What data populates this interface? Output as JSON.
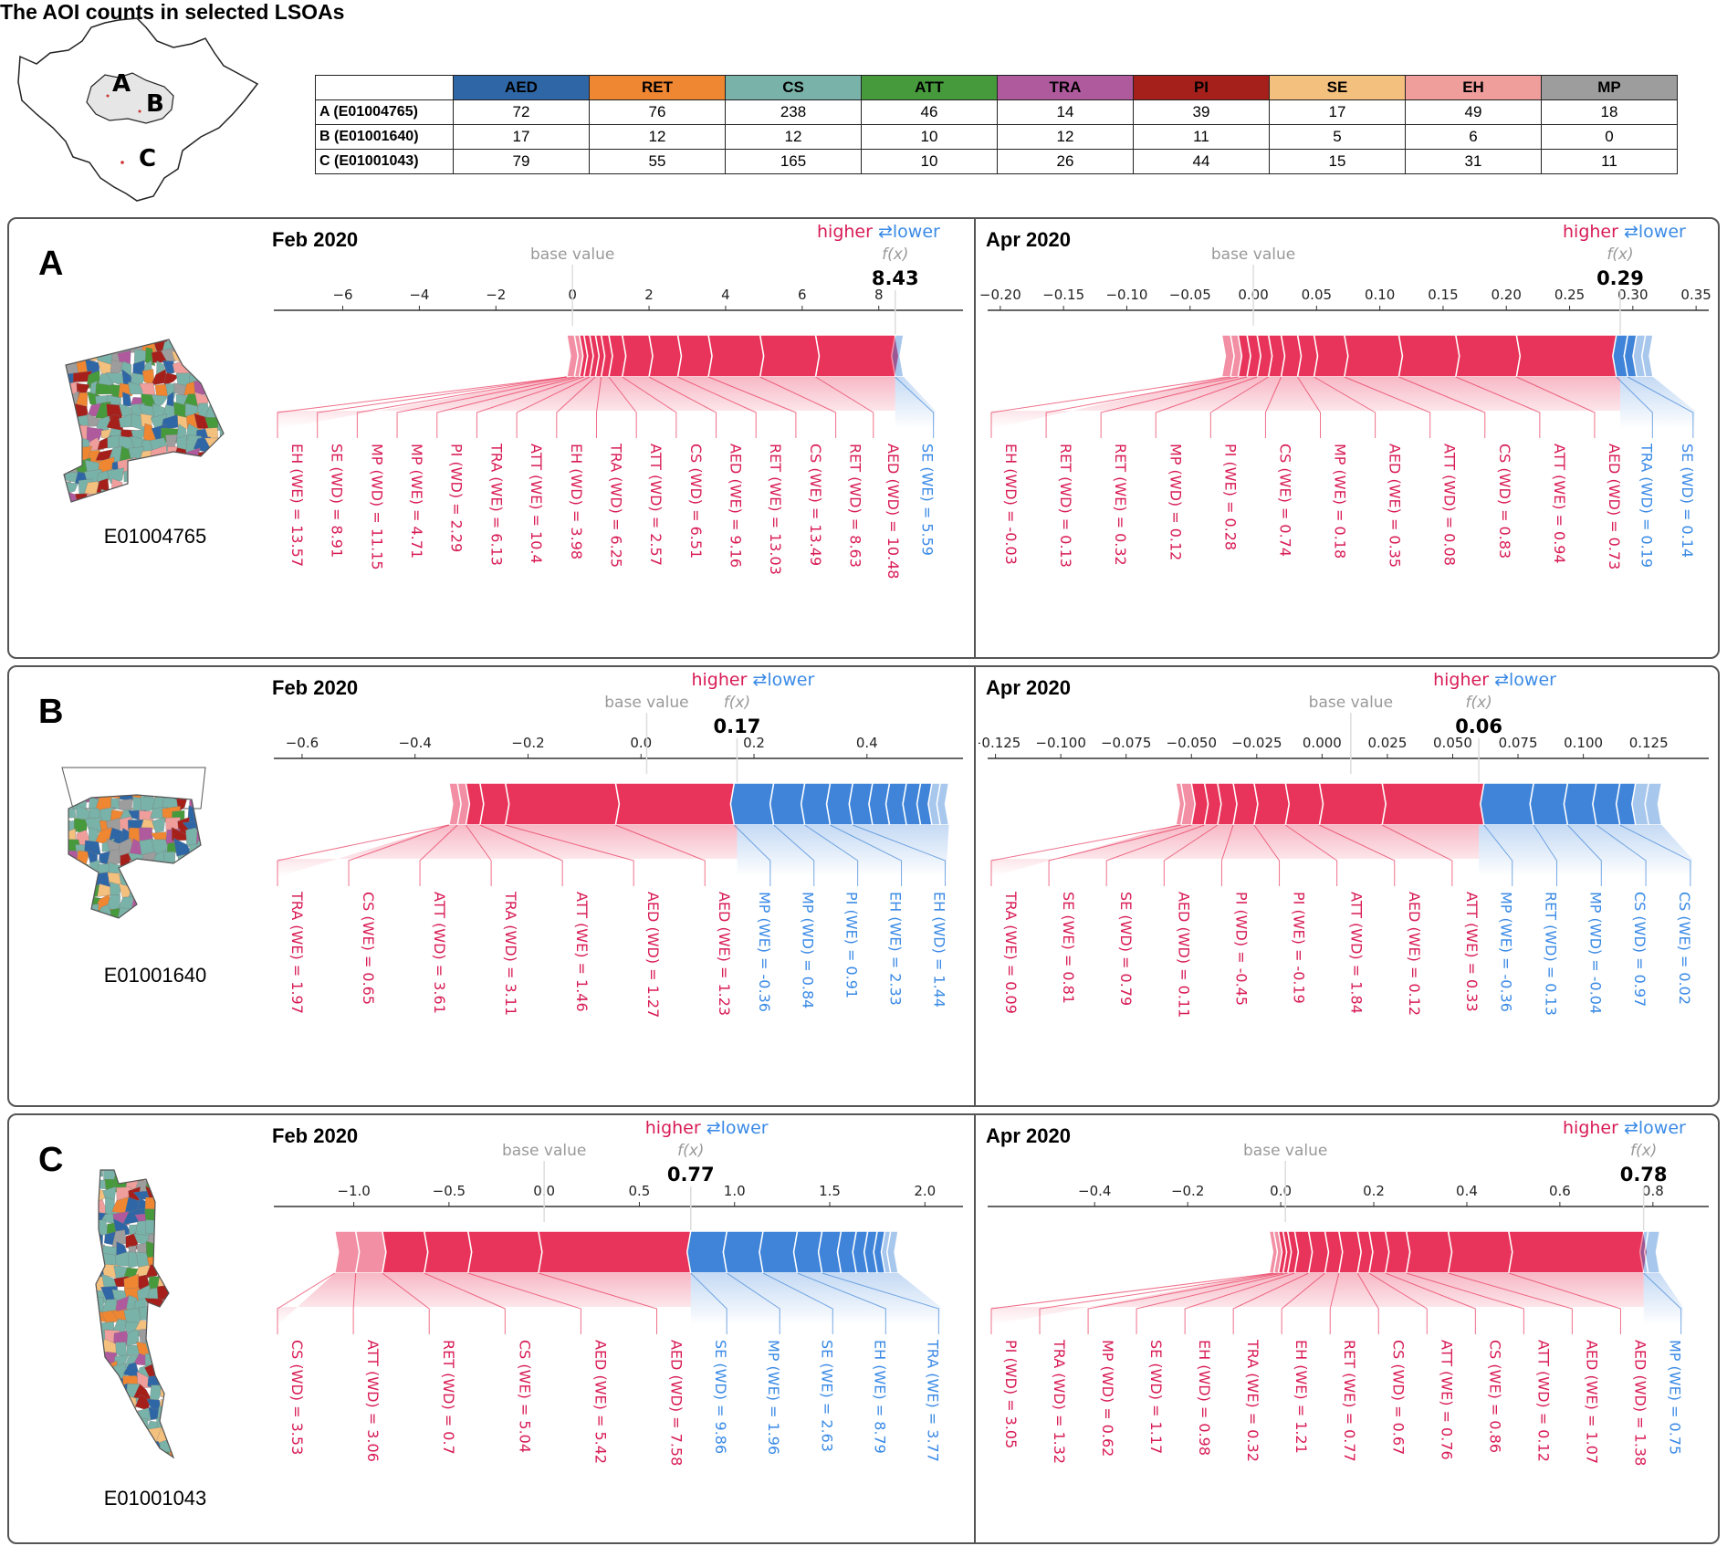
{
  "overview_map": {
    "markers": [
      "A",
      "B",
      "C"
    ]
  },
  "table": {
    "title": "The AOI counts in selected LSOAs",
    "columns": [
      {
        "label": "AED",
        "color": "#2f67a6"
      },
      {
        "label": "RET",
        "color": "#ef8632"
      },
      {
        "label": "CS",
        "color": "#79b2a8"
      },
      {
        "label": "ATT",
        "color": "#479a3c"
      },
      {
        "label": "TRA",
        "color": "#b05a9e"
      },
      {
        "label": "PI",
        "color": "#a5201b"
      },
      {
        "label": "SE",
        "color": "#f4c07e"
      },
      {
        "label": "EH",
        "color": "#ef9e9c"
      },
      {
        "label": "MP",
        "color": "#9d9d9d"
      }
    ],
    "rows": [
      {
        "label": "A (E01004765)",
        "values": [
          72,
          76,
          238,
          46,
          14,
          39,
          17,
          49,
          18
        ]
      },
      {
        "label": "B (E01001640)",
        "values": [
          17,
          12,
          12,
          10,
          12,
          11,
          5,
          6,
          0
        ]
      },
      {
        "label": "C (E01001043)",
        "values": [
          79,
          55,
          165,
          10,
          26,
          44,
          15,
          31,
          11
        ]
      }
    ]
  },
  "colors": {
    "positive": "#e8345a",
    "negative": "#3f84d9",
    "positive_text": "#d81b55",
    "negative_text": "#3a8ae6",
    "base_text": "#999999"
  },
  "legend": {
    "higher": "higher",
    "lower": "lower",
    "arrows": "⇄"
  },
  "common": {
    "base_value_label": "base value",
    "fx_label": "f(x)"
  },
  "panels": [
    {
      "id": "A",
      "lsoa": "E01004765"
    },
    {
      "id": "B",
      "lsoa": "E01001640"
    },
    {
      "id": "C",
      "lsoa": "E01001043"
    }
  ],
  "chart_data": [
    {
      "type": "force",
      "panel": "A",
      "title": "Feb 2020",
      "xlim": [
        -7.8,
        10.2
      ],
      "ticks": [
        -6,
        -4,
        -2,
        0,
        2,
        4,
        6,
        8
      ],
      "tick_labels": [
        "−6",
        "−4",
        "−2",
        "0",
        "2",
        "4",
        "6",
        "8"
      ],
      "base_value": 0.0,
      "fx": 8.43,
      "fx_label": "8.43",
      "positive": {
        "start": -0.15,
        "bounds": [
          -0.15,
          0.05,
          0.18,
          0.3,
          0.45,
          0.6,
          0.75,
          0.95,
          1.3,
          2.0,
          2.75,
          3.55,
          4.9,
          6.35,
          8.43
        ],
        "labels": [
          "EH (WE) = 13.57",
          "SE (WD) = 8.91",
          "MP (WD) = 11.15",
          "MP (WE) = 4.71",
          "PI (WD) = 2.29",
          "TRA (WE) = 6.13",
          "ATT (WE) = 10.4",
          "EH (WD) = 3.98",
          "TRA (WD) = 6.25",
          "ATT (WD) = 2.57",
          "CS (WD) = 6.51",
          "AED (WE) = 9.16",
          "RET (WE) = 13.03",
          "CS (WE) = 13.49",
          "RET (WD) = 8.63",
          "AED (WD) = 10.48"
        ]
      },
      "negative": {
        "bounds": [
          8.43,
          8.65
        ],
        "labels": [
          "SE (WE) = 5.59"
        ]
      }
    },
    {
      "type": "force",
      "panel": "A",
      "title": "Apr 2020",
      "xlim": [
        -0.21,
        0.36
      ],
      "ticks": [
        -0.2,
        -0.15,
        -0.1,
        -0.05,
        0,
        0.05,
        0.1,
        0.15,
        0.2,
        0.25,
        0.3,
        0.35
      ],
      "tick_labels": [
        "−0.20",
        "−0.15",
        "−0.10",
        "−0.05",
        "0.00",
        "0.05",
        "0.10",
        "0.15",
        "0.20",
        "0.25",
        "0.30",
        "0.35"
      ],
      "base_value": 0.0,
      "fx": 0.29,
      "fx_label": "0.29",
      "positive": {
        "bounds": [
          -0.025,
          -0.018,
          -0.012,
          -0.005,
          0.003,
          0.012,
          0.022,
          0.035,
          0.048,
          0.072,
          0.115,
          0.16,
          0.208,
          0.287
        ],
        "labels": [
          "EH (WD) = -0.03",
          "RET (WD) = 0.13",
          "RET (WE) = 0.32",
          "MP (WD) = 0.12",
          "PI (WE) = 0.28",
          "CS (WE) = 0.74",
          "MP (WE) = 0.18",
          "AED (WE) = 0.35",
          "ATT (WD) = 0.08",
          "CS (WD) = 0.83",
          "ATT (WE) = 0.94",
          "AED (WD) = 0.73"
        ]
      },
      "negative": {
        "bounds": [
          0.287,
          0.296,
          0.303,
          0.31,
          0.316
        ],
        "labels": [
          "TRA (WD) = 0.19",
          "SE (WD) = 0.14"
        ]
      }
    },
    {
      "type": "force",
      "panel": "B",
      "title": "Feb 2020",
      "xlim": [
        -0.65,
        0.57
      ],
      "ticks": [
        -0.6,
        -0.4,
        -0.2,
        0,
        0.2,
        0.4
      ],
      "tick_labels": [
        "−0.6",
        "−0.4",
        "−0.2",
        "0.0",
        "0.2",
        "0.4"
      ],
      "base_value": 0.01,
      "fx": 0.17,
      "fx_label": "0.17",
      "positive": {
        "bounds": [
          -0.34,
          -0.325,
          -0.31,
          -0.285,
          -0.24,
          -0.045,
          0.165
        ],
        "labels": [
          "TRA (WE) = 1.97",
          "CS (WE) = 0.65",
          "ATT (WD) = 3.61",
          "TRA (WD) = 3.11",
          "ATT (WE) = 1.46",
          "AED (WD) = 1.27",
          "AED (WE) = 1.23"
        ]
      },
      "negative": {
        "bounds": [
          0.165,
          0.235,
          0.29,
          0.335,
          0.375,
          0.41,
          0.44,
          0.47,
          0.495,
          0.515,
          0.53,
          0.545
        ],
        "labels": [
          "MP (WE) = -0.36",
          "MP (WD) = 0.84",
          "PI (WE) = 0.91",
          "EH (WE) = 2.33",
          "EH (WD) = 1.44"
        ]
      }
    },
    {
      "type": "force",
      "panel": "B",
      "title": "Apr 2020",
      "xlim": [
        -0.128,
        0.148
      ],
      "ticks": [
        -0.125,
        -0.1,
        -0.075,
        -0.05,
        -0.025,
        0,
        0.025,
        0.05,
        0.075,
        0.1,
        0.125
      ],
      "tick_labels": [
        "−0.125",
        "−0.100",
        "−0.075",
        "−0.050",
        "−0.025",
        "0.000",
        "0.025",
        "0.050",
        "0.075",
        "0.100",
        "0.125"
      ],
      "base_value": 0.011,
      "fx": 0.06,
      "fx_label": "0.06",
      "positive": {
        "bounds": [
          -0.056,
          -0.054,
          -0.05,
          -0.045,
          -0.04,
          -0.034,
          -0.026,
          -0.014,
          -0.001,
          0.023,
          0.062
        ],
        "labels": [
          "TRA (WE) = 0.09",
          "SE (WE) = 0.81",
          "SE (WD) = 0.79",
          "AED (WD) = 0.11",
          "PI (WD) = -0.45",
          "PI (WE) = -0.19",
          "ATT (WD) = 1.84",
          "AED (WE) = 0.12",
          "ATT (WE) = 0.33"
        ]
      },
      "negative": {
        "bounds": [
          0.062,
          0.081,
          0.094,
          0.105,
          0.114,
          0.12,
          0.125,
          0.13
        ],
        "labels": [
          "MP (WE) = -0.36",
          "RET (WD) = 0.13",
          "MP (WD) = -0.04",
          "CS (WD) = 0.97",
          "CS (WE) = 0.02"
        ]
      }
    },
    {
      "type": "force",
      "panel": "C",
      "title": "Feb 2020",
      "xlim": [
        -1.42,
        2.2
      ],
      "ticks": [
        -1.0,
        -0.5,
        0,
        0.5,
        1.0,
        1.5,
        2.0
      ],
      "tick_labels": [
        "−1.0",
        "−0.5",
        "0.0",
        "0.5",
        "1.0",
        "1.5",
        "2.0"
      ],
      "base_value": 0.0,
      "fx": 0.77,
      "fx_label": "0.77",
      "positive": {
        "bounds": [
          -1.1,
          -0.99,
          -0.85,
          -0.63,
          -0.4,
          -0.03,
          0.77
        ],
        "labels": [
          "CS (WD) = 3.53",
          "ATT (WD) = 3.06",
          "RET (WD) = 0.7",
          "CS (WE) = 5.04",
          "AED (WE) = 5.42",
          "AED (WD) = 7.58"
        ]
      },
      "negative": {
        "bounds": [
          0.77,
          0.96,
          1.15,
          1.33,
          1.46,
          1.56,
          1.64,
          1.7,
          1.75,
          1.79,
          1.82,
          1.86
        ],
        "labels": [
          "SE (WD) = 9.86",
          "MP (WE) = 1.96",
          "SE (WE) = 2.63",
          "EH (WE) = 8.79",
          "TRA (WE) = 3.77"
        ]
      }
    },
    {
      "type": "force",
      "panel": "C",
      "title": "Apr 2020",
      "xlim": [
        -0.63,
        0.92
      ],
      "ticks": [
        -0.4,
        -0.2,
        0,
        0.2,
        0.4,
        0.6,
        0.8
      ],
      "tick_labels": [
        "−0.4",
        "−0.2",
        "0.0",
        "0.2",
        "0.4",
        "0.6",
        "0.8"
      ],
      "base_value": 0.01,
      "fx": 0.78,
      "fx_label": "0.78",
      "positive": {
        "bounds": [
          -0.025,
          -0.015,
          -0.005,
          0.005,
          0.015,
          0.03,
          0.06,
          0.095,
          0.125,
          0.165,
          0.19,
          0.225,
          0.27,
          0.36,
          0.49,
          0.78
        ],
        "labels": [
          "PI (WD) = 3.05",
          "TRA (WD) = 1.32",
          "MP (WD) = 0.62",
          "SE (WD) = 1.17",
          "EH (WD) = 0.98",
          "TRA (WE) = 0.32",
          "EH (WE) = 1.21",
          "RET (WE) = 0.77",
          "CS (WD) = 0.67",
          "ATT (WE) = 0.76",
          "CS (WE) = 0.86",
          "ATT (WD) = 0.12",
          "AED (WE) = 1.07",
          "AED (WD) = 1.38"
        ]
      },
      "negative": {
        "bounds": [
          0.78,
          0.79,
          0.815
        ],
        "labels": [
          "MP (WE) = 0.75"
        ]
      }
    }
  ]
}
